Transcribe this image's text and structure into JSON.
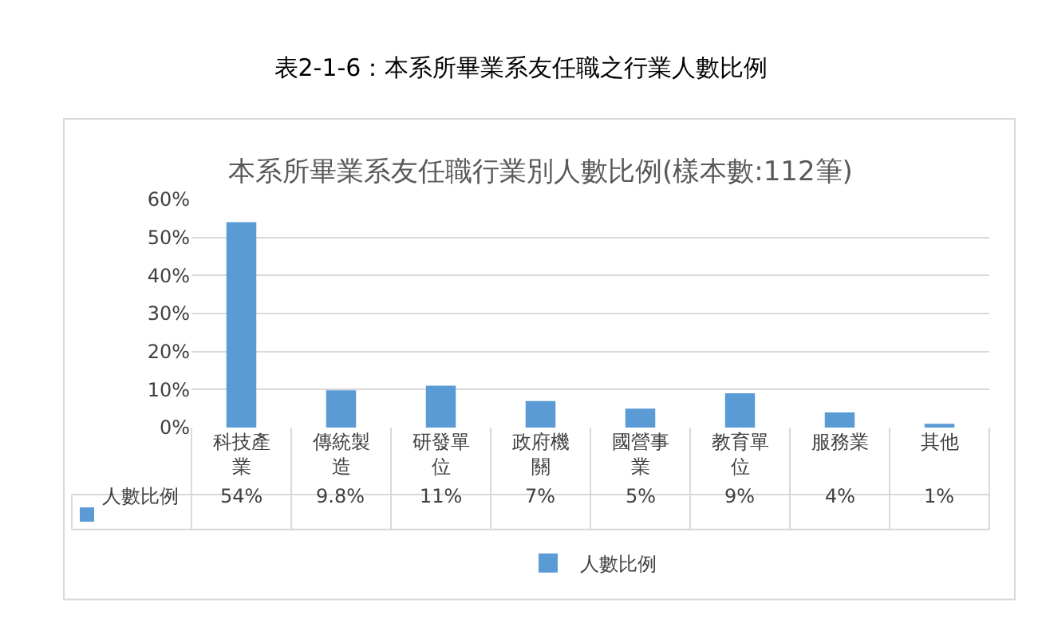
{
  "chart_data": {
    "type": "bar",
    "title": "表2-1-6：本系所畢業系友任職之行業人數比例",
    "subtitle": "本系所畢業系友任職行業別人數比例(樣本數:112筆)",
    "categories": [
      "科技產業",
      "傳統製造",
      "研發單位",
      "政府機關",
      "國營事業",
      "教育單位",
      "服務業",
      "其他"
    ],
    "series": [
      {
        "name": "人數比例",
        "color": "#5b9bd5",
        "values": [
          54,
          9.8,
          11,
          7,
          5,
          9,
          4,
          1
        ],
        "value_labels": [
          "54%",
          "9.8%",
          "11%",
          "7%",
          "5%",
          "9%",
          "4%",
          "1%"
        ]
      }
    ],
    "ylim": [
      0,
      60
    ],
    "yticks": [
      {
        "value": 0,
        "label": "0%"
      },
      {
        "value": 10,
        "label": "10%"
      },
      {
        "value": 20,
        "label": "20%"
      },
      {
        "value": 30,
        "label": "30%"
      },
      {
        "value": 40,
        "label": "40%"
      },
      {
        "value": 50,
        "label": "50%"
      },
      {
        "value": 60,
        "label": "60%"
      }
    ],
    "grid": "y",
    "legend": "bottom"
  }
}
